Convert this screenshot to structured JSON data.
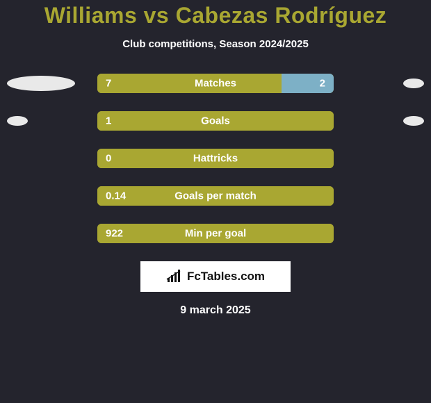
{
  "background_color": "#24242d",
  "title": {
    "text": "Williams vs Cabezas Rodríguez",
    "color": "#a9a732",
    "fontsize": 32
  },
  "subtitle": {
    "text": "Club competitions, Season 2024/2025",
    "color": "#ffffff",
    "fontsize": 15
  },
  "bars": {
    "track_width": 340,
    "track_height": 28,
    "border_radius": 6,
    "left_color": "#a9a732",
    "right_color": "#7db0c6",
    "value_fontsize": 15,
    "value_color": "#ffffff",
    "label_fontsize": 15,
    "label_color": "#ffffff"
  },
  "ellipse": {
    "base_color": "#e9e9e9",
    "width_scale": 14,
    "min_width": 30,
    "height_scale": 3.2,
    "min_height": 14,
    "max_width": 110,
    "max_height": 28
  },
  "rows": [
    {
      "label": "Matches",
      "left_value": "7",
      "right_value": "2",
      "left_pct": 77.8,
      "right_pct": 22.2,
      "left_ellipse": 7,
      "right_ellipse": 2
    },
    {
      "label": "Goals",
      "left_value": "1",
      "right_value": "",
      "left_pct": 100,
      "right_pct": 0,
      "left_ellipse": 1,
      "right_ellipse": 1
    },
    {
      "label": "Hattricks",
      "left_value": "0",
      "right_value": "",
      "left_pct": 100,
      "right_pct": 0,
      "left_ellipse": 0,
      "right_ellipse": 0
    },
    {
      "label": "Goals per match",
      "left_value": "0.14",
      "right_value": "",
      "left_pct": 100,
      "right_pct": 0,
      "left_ellipse": 0,
      "right_ellipse": 0
    },
    {
      "label": "Min per goal",
      "left_value": "922",
      "right_value": "",
      "left_pct": 100,
      "right_pct": 0,
      "left_ellipse": 0,
      "right_ellipse": 0
    }
  ],
  "logo": {
    "text": "FcTables.com",
    "box_bg": "#ffffff",
    "text_color": "#111111",
    "fontsize": 17
  },
  "date": {
    "text": "9 march 2025",
    "color": "#ffffff",
    "fontsize": 16
  }
}
